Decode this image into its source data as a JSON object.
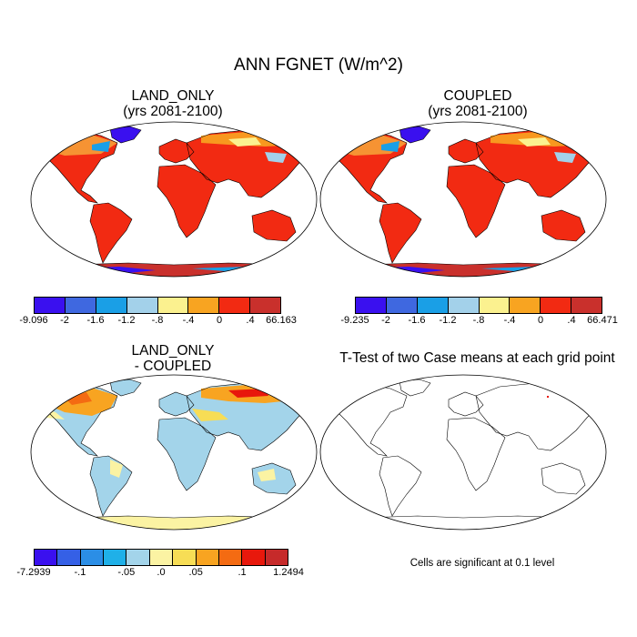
{
  "main_title": "ANN FGNET (W/m^2)",
  "panels": {
    "land_only": {
      "title": "LAND_ONLY",
      "subtitle": "(yrs 2081-2100)"
    },
    "coupled": {
      "title": "COUPLED",
      "subtitle": "(yrs 2081-2100)"
    },
    "diff": {
      "title": "LAND_ONLY",
      "subtitle": "- COUPLED"
    },
    "ttest": {
      "title": "T-Test of two Case means at each grid point",
      "note": "Cells are significant at 0.1 level"
    }
  },
  "colorbars": {
    "land_only": {
      "colors": [
        "#3a10ef",
        "#3f68e0",
        "#1a9fe6",
        "#a3d1ea",
        "#fbf18f",
        "#f8a421",
        "#f22a12",
        "#c9302c"
      ],
      "labels": [
        "-9.096",
        "-2",
        "-1.6",
        "-1.2",
        "-.8",
        "-.4",
        "0",
        ".4",
        "66.163"
      ]
    },
    "coupled": {
      "colors": [
        "#3a10ef",
        "#3f68e0",
        "#1a9fe6",
        "#a3d1ea",
        "#fbf18f",
        "#f8a421",
        "#f22a12",
        "#c9302c"
      ],
      "labels": [
        "-9.235",
        "-2",
        "-1.6",
        "-1.2",
        "-.8",
        "-.4",
        "0",
        ".4",
        "66.471"
      ]
    },
    "diff": {
      "colors": [
        "#3a10ef",
        "#3560e6",
        "#2b8ee6",
        "#1fb0e8",
        "#a3d4ea",
        "#fbf3a3",
        "#f7dd55",
        "#f8a421",
        "#f46b12",
        "#e8180c",
        "#c62a2a"
      ],
      "labels": [
        "-7.2939",
        "-.1",
        "-.05",
        ".0",
        ".05",
        ".1",
        "1.2494"
      ]
    }
  }
}
